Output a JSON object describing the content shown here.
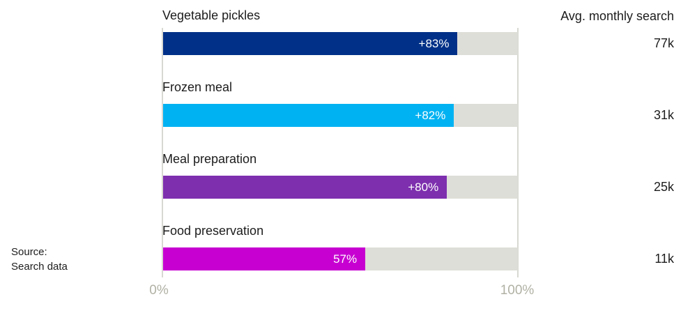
{
  "right_column": {
    "header": "Avg. monthly search"
  },
  "axis": {
    "min_label": "0%",
    "max_label": "100%"
  },
  "source": {
    "line1": "Source:",
    "line2": "Search data"
  },
  "colors": {
    "track": "#deded8",
    "gridline": "#d8d8d2",
    "axis_text": "#b1b1a5",
    "text": "#1c1c1c",
    "bar_value_text": "#ffffff"
  },
  "chart_data": {
    "type": "bar",
    "orientation": "horizontal",
    "title": "",
    "xlabel": "",
    "ylabel": "",
    "xlim": [
      0,
      100
    ],
    "x_tick_labels": [
      "0%",
      "100%"
    ],
    "grid": "vertical lines at 0% and 100% only",
    "legend": "none",
    "right_column_header": "Avg. monthly search",
    "categories": [
      "Vegetable pickles",
      "Frozen meal",
      "Meal preparation",
      "Food preservation"
    ],
    "values": [
      83,
      82,
      80,
      57
    ],
    "rows": [
      {
        "label": "Vegetable pickles",
        "value_pct": 83,
        "value_label": "+83%",
        "avg_monthly_search": "77k",
        "color": "#003087"
      },
      {
        "label": "Frozen meal",
        "value_pct": 82,
        "value_label": "+82%",
        "avg_monthly_search": "31k",
        "color": "#00b2f2"
      },
      {
        "label": "Meal preparation",
        "value_pct": 80,
        "value_label": "+80%",
        "avg_monthly_search": "25k",
        "color": "#7d2fae"
      },
      {
        "label": "Food preservation",
        "value_pct": 57,
        "value_label": "57%",
        "avg_monthly_search": "11k",
        "color": "#c700d1"
      }
    ]
  }
}
